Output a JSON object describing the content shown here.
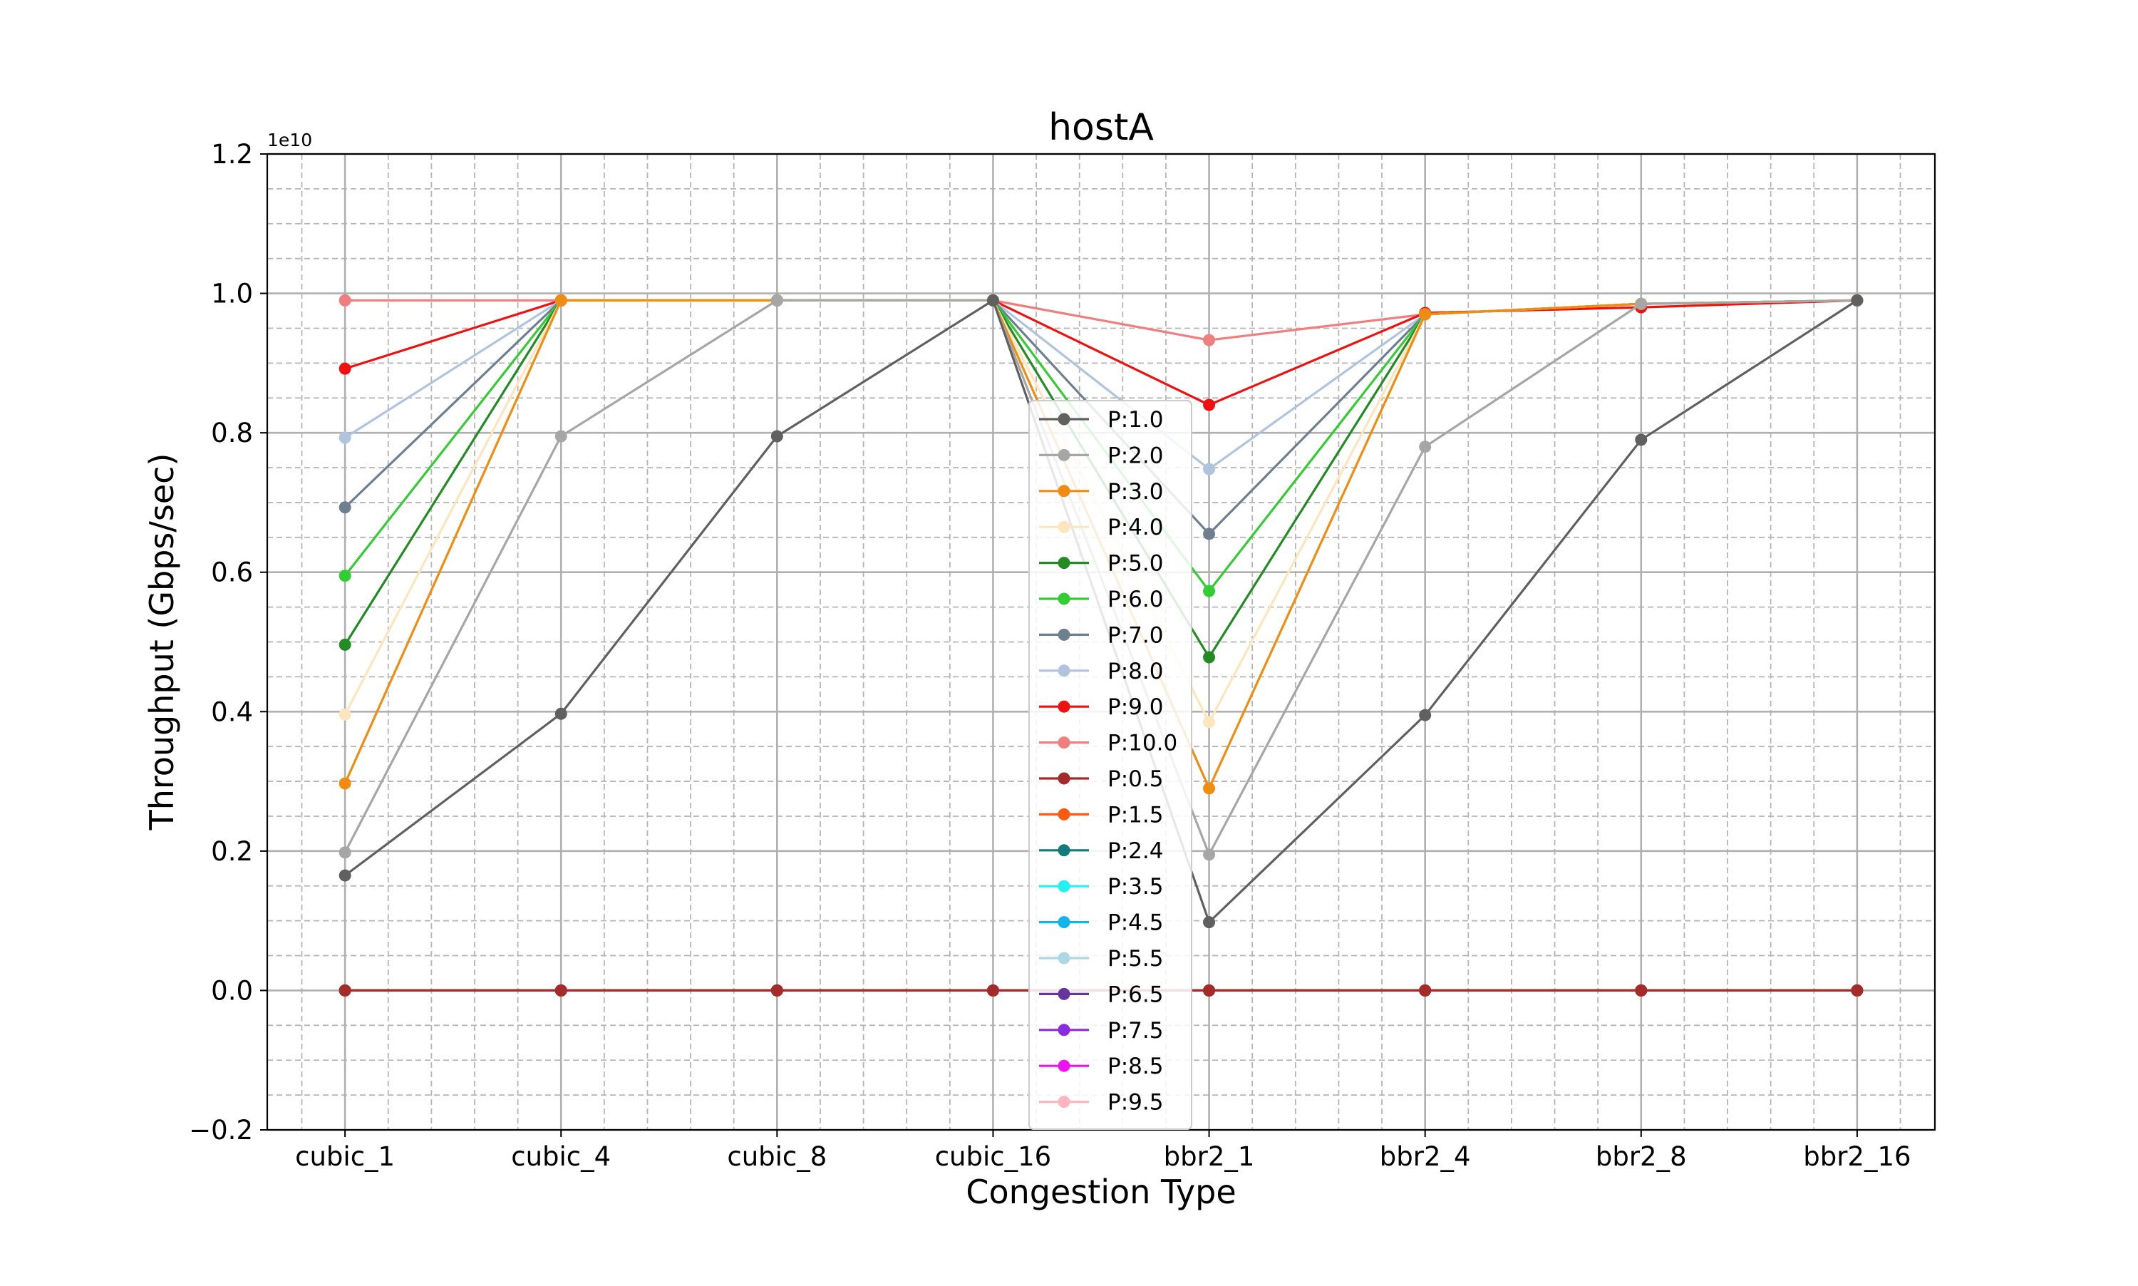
{
  "chart_data": {
    "type": "line",
    "title": "hostA",
    "xlabel": "Congestion Type",
    "ylabel": "Throughput (Gbps/sec)",
    "y_offset_text": "1e10",
    "ylim": [
      -0.2,
      1.2
    ],
    "y_ticks": [
      -0.2,
      0.0,
      0.2,
      0.4,
      0.6,
      0.8,
      1.0,
      1.2
    ],
    "y_tick_labels": [
      "−0.2",
      "0.0",
      "0.2",
      "0.4",
      "0.6",
      "0.8",
      "1.0",
      "1.2"
    ],
    "categories": [
      "cubic_1",
      "cubic_4",
      "cubic_8",
      "cubic_16",
      "bbr2_1",
      "bbr2_4",
      "bbr2_8",
      "bbr2_16"
    ],
    "grid": "major solid, minor dashed",
    "legend_position": "center",
    "series": [
      {
        "name": "P:1.0",
        "color": "#606060",
        "values": [
          0.165,
          0.397,
          0.795,
          0.99,
          0.098,
          0.395,
          0.79,
          0.99
        ]
      },
      {
        "name": "P:2.0",
        "color": "#a6a6a6",
        "values": [
          0.198,
          0.795,
          0.99,
          0.99,
          0.195,
          0.78,
          0.985,
          0.99
        ]
      },
      {
        "name": "P:3.0",
        "color": "#f08c10",
        "values": [
          0.297,
          0.99,
          0.99,
          0.99,
          0.29,
          0.97,
          0.985,
          0.99
        ]
      },
      {
        "name": "P:4.0",
        "color": "#fde5bd",
        "values": [
          0.396,
          0.99,
          0.99,
          0.99,
          0.385,
          0.97,
          0.985,
          0.99
        ]
      },
      {
        "name": "P:5.0",
        "color": "#238b23",
        "values": [
          0.496,
          0.99,
          0.99,
          0.99,
          0.478,
          0.97,
          0.985,
          0.99
        ]
      },
      {
        "name": "P:6.0",
        "color": "#33cc33",
        "values": [
          0.595,
          0.99,
          0.99,
          0.99,
          0.573,
          0.97,
          0.985,
          0.99
        ]
      },
      {
        "name": "P:7.0",
        "color": "#6e7f90",
        "values": [
          0.693,
          0.99,
          0.99,
          0.99,
          0.655,
          0.97,
          0.985,
          0.99
        ]
      },
      {
        "name": "P:8.0",
        "color": "#b0c4de",
        "values": [
          0.793,
          0.99,
          0.99,
          0.99,
          0.748,
          0.97,
          0.985,
          0.99
        ]
      },
      {
        "name": "P:9.0",
        "color": "#f01010",
        "values": [
          0.892,
          0.99,
          0.99,
          0.99,
          0.84,
          0.972,
          0.98,
          0.99
        ]
      },
      {
        "name": "P:10.0",
        "color": "#ef7f7f",
        "values": [
          0.99,
          0.99,
          0.99,
          0.99,
          0.933,
          0.97,
          0.985,
          0.99
        ]
      },
      {
        "name": "P:0.5",
        "color": "#a52a2a",
        "values": [
          0,
          0,
          0,
          0,
          0,
          0,
          0,
          0
        ]
      },
      {
        "name": "P:1.5",
        "color": "#ff5a12",
        "values": [
          0,
          0,
          0,
          0,
          0,
          0,
          0,
          0
        ]
      },
      {
        "name": "P:2.4",
        "color": "#127a7a",
        "values": [
          0,
          0,
          0,
          0,
          0,
          0,
          0,
          0
        ]
      },
      {
        "name": "P:3.5",
        "color": "#20f2f2",
        "values": [
          0,
          0,
          0,
          0,
          0,
          0,
          0,
          0
        ]
      },
      {
        "name": "P:4.5",
        "color": "#12b4ec",
        "values": [
          0,
          0,
          0,
          0,
          0,
          0,
          0,
          0
        ]
      },
      {
        "name": "P:5.5",
        "color": "#acd8e6",
        "values": [
          0,
          0,
          0,
          0,
          0,
          0,
          0,
          0
        ]
      },
      {
        "name": "P:6.5",
        "color": "#66359c",
        "values": [
          0,
          0,
          0,
          0,
          0,
          0,
          0,
          0
        ]
      },
      {
        "name": "P:7.5",
        "color": "#8a2be2",
        "values": [
          0,
          0,
          0,
          0,
          0,
          0,
          0,
          0
        ]
      },
      {
        "name": "P:8.5",
        "color": "#ee12ee",
        "values": [
          0,
          0,
          0,
          0,
          0,
          0,
          0,
          0
        ]
      },
      {
        "name": "P:9.5",
        "color": "#ffb6c1",
        "values": [
          0,
          0,
          0,
          0,
          0,
          0,
          0,
          0
        ]
      }
    ]
  }
}
